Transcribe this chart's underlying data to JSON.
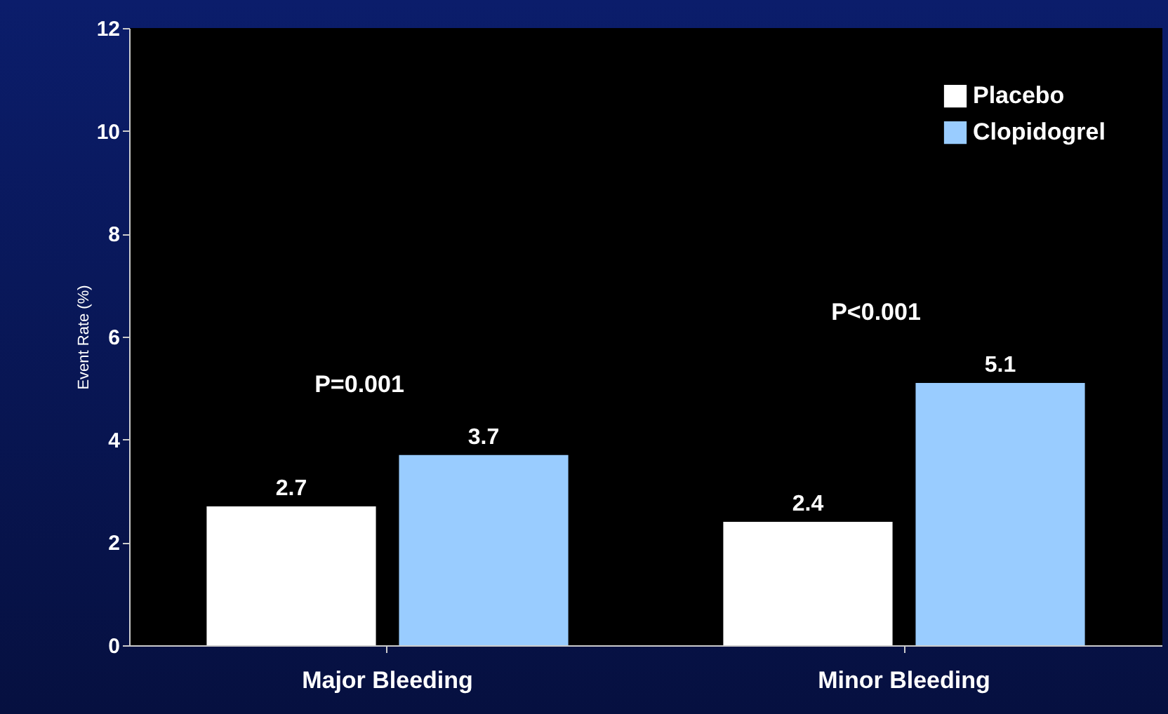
{
  "chart_data": {
    "type": "bar",
    "ylabel": "Event Rate (%)",
    "categories": [
      "Major Bleeding",
      "Minor Bleeding"
    ],
    "series": [
      {
        "name": "Placebo",
        "color": "#ffffff",
        "values": [
          2.7,
          2.4
        ]
      },
      {
        "name": "Clopidogrel",
        "color": "#99ccff",
        "values": [
          3.7,
          5.1
        ]
      }
    ],
    "ylim": [
      0,
      12
    ],
    "yticks": [
      0,
      2,
      4,
      6,
      8,
      10,
      12
    ],
    "grid": false,
    "legend": "top right",
    "data_labels": true,
    "annotations": [
      "P=0.001",
      "P<0.001"
    ]
  }
}
